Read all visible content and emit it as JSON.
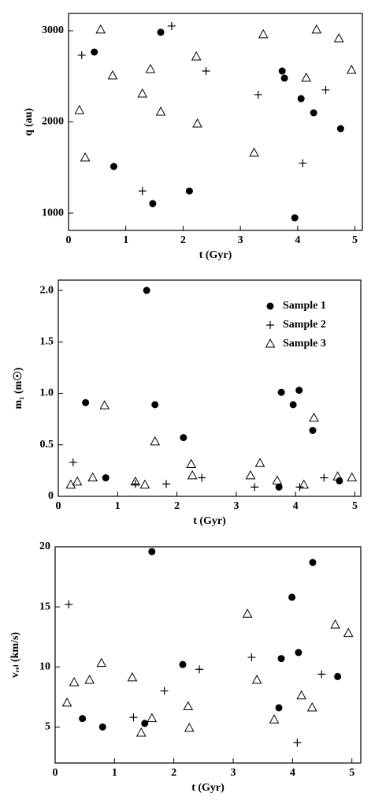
{
  "chart_data": [
    {
      "type": "scatter",
      "xlabel": "t (Gyr)",
      "ylabel": "q (au)",
      "xlim": [
        0,
        5.13
      ],
      "xticks": [
        0,
        1,
        2,
        3,
        4,
        5
      ],
      "ylim": [
        810,
        3190
      ],
      "yticks": [
        1000,
        2000,
        3000
      ],
      "series": [
        {
          "marker": "circle",
          "color": "#000000",
          "x": [
            0.45,
            0.79,
            1.61,
            1.47,
            2.11,
            3.73,
            3.77,
            4.06,
            4.28,
            4.75,
            3.95
          ],
          "values": [
            2766,
            1511,
            2983,
            1104,
            1242,
            2558,
            2480,
            2255,
            2100,
            1926,
            948
          ]
        },
        {
          "marker": "plus",
          "color": "#000000",
          "x": [
            0.23,
            1.8,
            2.4,
            1.29,
            3.31,
            4.49,
            4.09
          ],
          "values": [
            2732,
            3052,
            2558,
            1242,
            2299,
            2351,
            1546
          ]
        },
        {
          "marker": "triangle",
          "color": "#000000",
          "x": [
            0.56,
            0.19,
            0.29,
            0.77,
            1.29,
            1.43,
            1.61,
            2.23,
            2.25,
            3.4,
            3.24,
            4.15,
            4.33,
            4.72,
            4.94
          ],
          "values": [
            3009,
            2126,
            1606,
            2506,
            2307,
            2576,
            2108,
            2714,
            1978,
            2957,
            1658,
            2480,
            3009,
            2913,
            2567
          ]
        }
      ]
    },
    {
      "type": "scatter",
      "xlabel": "t (Gyr)",
      "ylabel": "m₁ (m☉)",
      "legend": "upper right",
      "xlim": [
        0,
        5.1
      ],
      "xticks": [
        0,
        1,
        2,
        3,
        4,
        5
      ],
      "ylim": [
        0,
        2.1
      ],
      "yticks": [
        0,
        0.5,
        {
          "value": 1,
          "label": "1.0"
        },
        1.5,
        {
          "value": 2,
          "label": "2.0"
        }
      ],
      "series": [
        {
          "name": "Sample 1",
          "marker": "circle",
          "color": "#000000",
          "x": [
            0.46,
            0.8,
            1.49,
            1.63,
            2.11,
            3.76,
            4.06,
            3.96,
            4.29,
            3.72,
            4.74
          ],
          "values": [
            0.91,
            0.18,
            2.0,
            0.89,
            0.57,
            1.01,
            1.03,
            0.89,
            0.64,
            0.09,
            0.15
          ]
        },
        {
          "name": "Sample 2",
          "marker": "plus",
          "color": "#000000",
          "x": [
            0.25,
            1.3,
            1.82,
            2.42,
            3.31,
            4.07,
            4.48
          ],
          "values": [
            0.33,
            0.12,
            0.12,
            0.18,
            0.09,
            0.09,
            0.18
          ]
        },
        {
          "name": "Sample 3",
          "marker": "triangle",
          "color": "#000000",
          "x": [
            0.21,
            0.32,
            0.58,
            0.78,
            1.3,
            1.46,
            1.63,
            2.24,
            2.26,
            3.24,
            3.4,
            3.69,
            4.14,
            4.31,
            4.71,
            4.95
          ],
          "values": [
            0.11,
            0.14,
            0.18,
            0.88,
            0.14,
            0.11,
            0.53,
            0.31,
            0.2,
            0.2,
            0.32,
            0.15,
            0.11,
            0.76,
            0.19,
            0.18
          ]
        }
      ]
    },
    {
      "type": "scatter",
      "xlabel": "t (Gyr)",
      "ylabel": "vᵣₑₗ (km/s)",
      "xlim": [
        0,
        5.15
      ],
      "xticks": [
        0,
        1,
        2,
        3,
        4,
        5
      ],
      "ylim": [
        2,
        20
      ],
      "yticks": [
        5,
        10,
        15,
        20
      ],
      "series": [
        {
          "marker": "circle",
          "color": "#000000",
          "x": [
            0.46,
            0.8,
            1.51,
            1.63,
            2.15,
            3.77,
            3.81,
            3.99,
            4.1,
            4.34,
            4.76
          ],
          "values": [
            5.7,
            5.0,
            5.3,
            19.6,
            10.2,
            6.6,
            10.7,
            15.8,
            11.2,
            18.7,
            9.2
          ]
        },
        {
          "marker": "plus",
          "color": "#000000",
          "x": [
            0.23,
            1.32,
            1.84,
            2.43,
            3.31,
            4.08,
            4.49
          ],
          "values": [
            15.2,
            5.8,
            8.0,
            9.8,
            10.8,
            3.7,
            9.4
          ]
        },
        {
          "marker": "triangle",
          "color": "#000000",
          "x": [
            0.2,
            0.32,
            0.58,
            0.78,
            1.3,
            1.45,
            1.63,
            2.24,
            2.26,
            3.24,
            3.4,
            3.69,
            4.15,
            4.33,
            4.72,
            4.94
          ],
          "values": [
            7.0,
            8.7,
            8.9,
            10.3,
            9.1,
            4.5,
            5.7,
            6.7,
            4.9,
            14.4,
            8.9,
            5.6,
            7.6,
            6.6,
            13.5,
            12.8
          ]
        }
      ]
    }
  ]
}
